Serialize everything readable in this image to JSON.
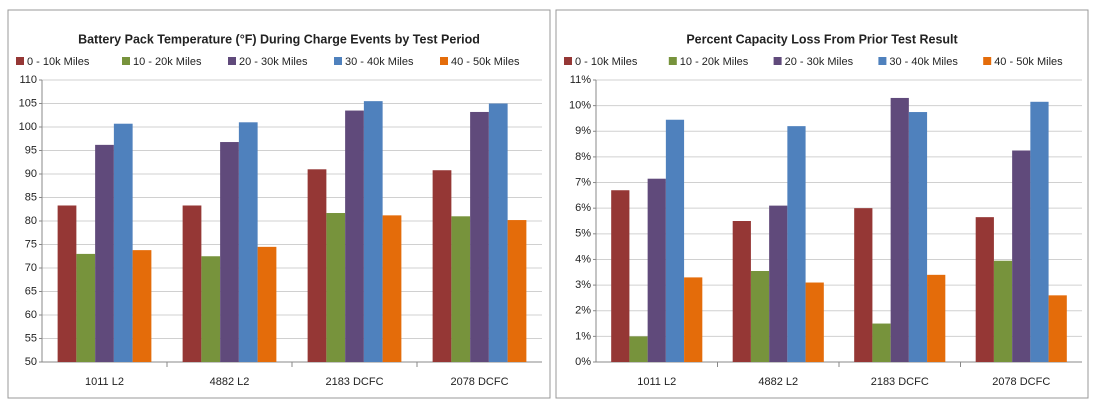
{
  "chart_data": [
    {
      "type": "bar",
      "title": "Battery Pack Temperature (°F) During Charge Events by Test Period",
      "categories": [
        "1011 L2",
        "4882 L2",
        "2183 DCFC",
        "2078 DCFC"
      ],
      "series": [
        {
          "name": "0 - 10k Miles",
          "color": "#953735",
          "values": [
            83.3,
            83.3,
            91,
            90.8
          ]
        },
        {
          "name": "10 - 20k Miles",
          "color": "#77933c",
          "values": [
            73,
            72.5,
            81.7,
            81
          ]
        },
        {
          "name": "20 - 30k Miles",
          "color": "#604a7b",
          "values": [
            96.2,
            96.8,
            103.5,
            103.2
          ]
        },
        {
          "name": "30 - 40k Miles",
          "color": "#4f81bd",
          "values": [
            100.7,
            101,
            105.5,
            105
          ]
        },
        {
          "name": "40 - 50k Miles",
          "color": "#e46c0a",
          "values": [
            73.8,
            74.5,
            81.2,
            80.2
          ]
        }
      ],
      "ylim": [
        50,
        110
      ],
      "yticks": [
        50,
        55,
        60,
        65,
        70,
        75,
        80,
        85,
        90,
        95,
        100,
        105,
        110
      ],
      "grid": true,
      "legend": "top"
    },
    {
      "type": "bar",
      "title": "Percent Capacity Loss From Prior Test Result",
      "categories": [
        "1011 L2",
        "4882 L2",
        "2183 DCFC",
        "2078 DCFC"
      ],
      "series": [
        {
          "name": "0 - 10k Miles",
          "color": "#953735",
          "values": [
            6.7,
            5.5,
            6.0,
            5.65
          ]
        },
        {
          "name": "10 - 20k Miles",
          "color": "#77933c",
          "values": [
            1.0,
            3.55,
            1.5,
            3.95
          ]
        },
        {
          "name": "20 - 30k Miles",
          "color": "#604a7b",
          "values": [
            7.15,
            6.1,
            10.3,
            8.25
          ]
        },
        {
          "name": "30 - 40k Miles",
          "color": "#4f81bd",
          "values": [
            9.45,
            9.2,
            9.75,
            10.15
          ]
        },
        {
          "name": "40 - 50k Miles",
          "color": "#e46c0a",
          "values": [
            3.3,
            3.1,
            3.4,
            2.6
          ]
        }
      ],
      "ylim": [
        0,
        11
      ],
      "yticks": [
        {
          "value": 0,
          "label": "0%"
        },
        {
          "value": 1,
          "label": "1%"
        },
        {
          "value": 2,
          "label": "2%"
        },
        {
          "value": 3,
          "label": "3%"
        },
        {
          "value": 4,
          "label": "4%"
        },
        {
          "value": 5,
          "label": "5%"
        },
        {
          "value": 6,
          "label": "6%"
        },
        {
          "value": 7,
          "label": "7%"
        },
        {
          "value": 8,
          "label": "8%"
        },
        {
          "value": 9,
          "label": "9%"
        },
        {
          "value": 10,
          "label": "10%"
        },
        {
          "value": 11,
          "label": "11%"
        }
      ],
      "grid": true,
      "legend": "top"
    }
  ]
}
